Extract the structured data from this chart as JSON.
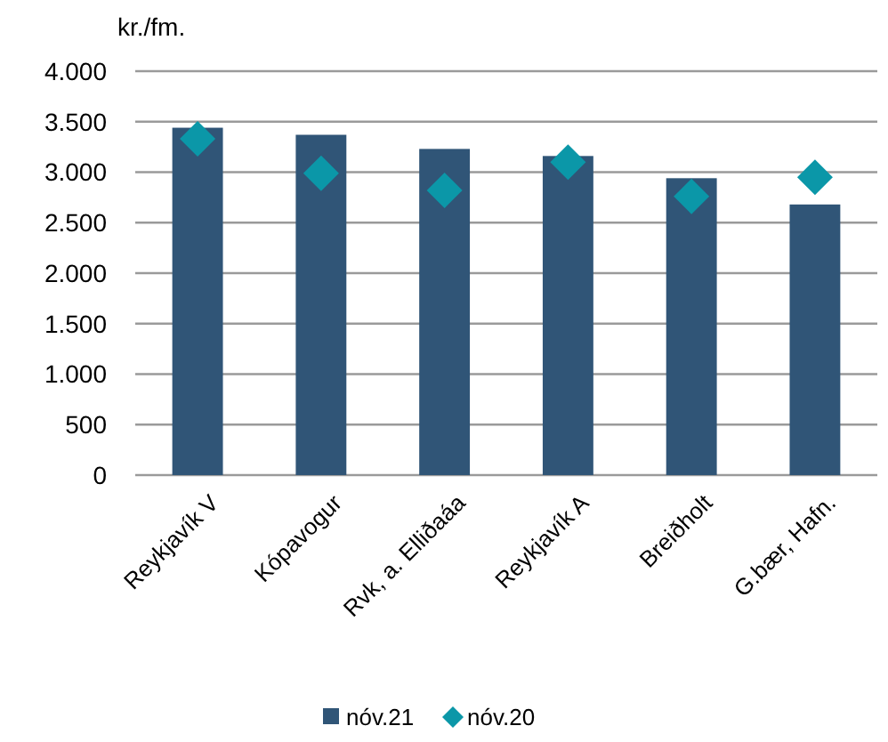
{
  "chart_data": {
    "type": "bar",
    "ylabel": "kr./fm.",
    "categories": [
      "Reykjavík V",
      "Kópavogur",
      "Rvk, a. Elliðaáa",
      "Reykjavík A",
      "Breiðholt",
      "G.bær, Hafn."
    ],
    "series": [
      {
        "name": "nóv.21",
        "color": "#305577",
        "values": [
          3440,
          3370,
          3230,
          3160,
          2940,
          2680
        ]
      },
      {
        "name": "nóv.20",
        "type": "scatter",
        "marker": "diamond",
        "color": "#0b97a8",
        "values": [
          3330,
          2990,
          2820,
          3100,
          2760,
          2950
        ]
      }
    ],
    "ylim": [
      0,
      4000
    ],
    "yticks": [
      0,
      {
        "value": 500,
        "label": "500"
      },
      {
        "value": 1000,
        "label": "1.000"
      },
      {
        "value": 1500,
        "label": "1.500"
      },
      {
        "value": 2000,
        "label": "2.000"
      },
      {
        "value": 2500,
        "label": "2.500"
      },
      {
        "value": 3000,
        "label": "3.000"
      },
      {
        "value": 3500,
        "label": "3.500"
      },
      {
        "value": 4000,
        "label": "4.000"
      }
    ],
    "grid": "y",
    "legend": "bottom"
  }
}
